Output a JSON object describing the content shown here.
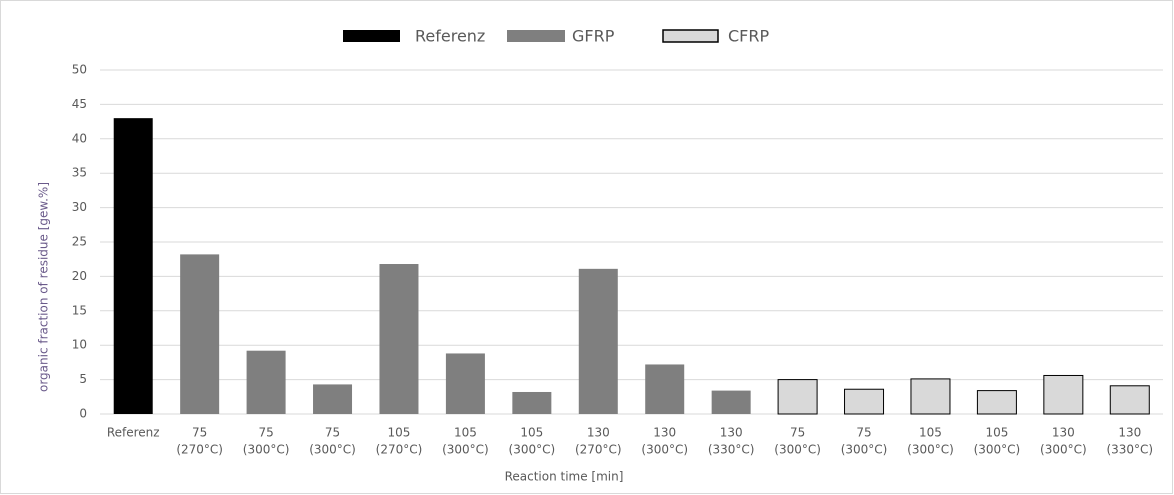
{
  "chart_data": {
    "type": "bar",
    "xlabel": "Reaction time [min]",
    "ylabel": "organic fraction of residue [gew.%]",
    "categories": [
      [
        "Referenz"
      ],
      [
        "75",
        "(270°C)"
      ],
      [
        "75",
        "(300°C)"
      ],
      [
        "75",
        "(300°C)"
      ],
      [
        "105",
        "(270°C)"
      ],
      [
        "105",
        "(300°C)"
      ],
      [
        "105",
        "(300°C)"
      ],
      [
        "130",
        "(270°C)"
      ],
      [
        "130",
        "(300°C)"
      ],
      [
        "130",
        "(330°C)"
      ],
      [
        "75",
        "(300°C)"
      ],
      [
        "75",
        "(300°C)"
      ],
      [
        "105",
        "(300°C)"
      ],
      [
        "105",
        "(300°C)"
      ],
      [
        "130",
        "(300°C)"
      ],
      [
        "130",
        "(330°C)"
      ]
    ],
    "series": [
      {
        "name": "Referenz",
        "color": "#000000",
        "values": [
          43,
          null,
          null,
          null,
          null,
          null,
          null,
          null,
          null,
          null,
          null,
          null,
          null,
          null,
          null,
          null
        ]
      },
      {
        "name": "GFRP",
        "color": "#7f7f7f",
        "values": [
          null,
          23.2,
          9.2,
          4.3,
          21.8,
          8.8,
          3.2,
          21.1,
          7.2,
          3.4,
          null,
          null,
          null,
          null,
          null,
          null
        ]
      },
      {
        "name": "CFRP",
        "color": "#d9d9d9",
        "stroke": "#000000",
        "values": [
          null,
          null,
          null,
          null,
          null,
          null,
          null,
          null,
          null,
          null,
          5.0,
          3.6,
          5.1,
          3.4,
          5.6,
          4.1
        ]
      }
    ],
    "ylim": [
      0,
      50
    ],
    "yticks": [
      0,
      5,
      10,
      15,
      20,
      25,
      30,
      35,
      40,
      45,
      50
    ],
    "grid": true,
    "legend": "top"
  }
}
